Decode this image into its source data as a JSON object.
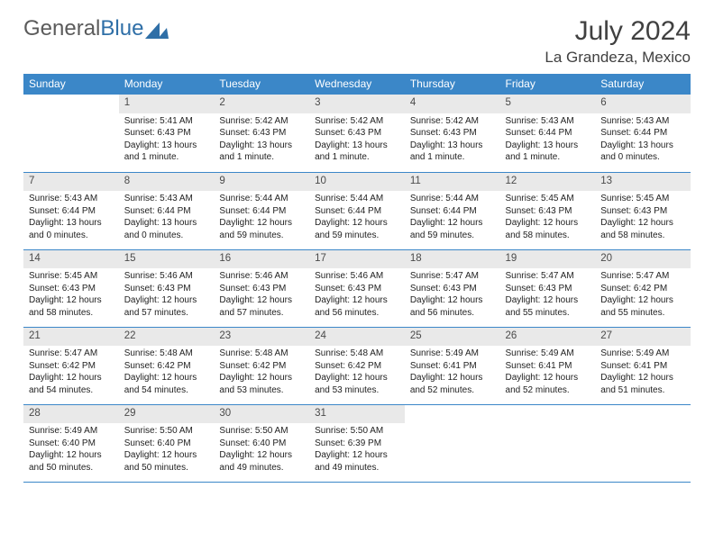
{
  "logo": {
    "text_gray": "General",
    "text_blue": "Blue"
  },
  "title": "July 2024",
  "location": "La Grandeza, Mexico",
  "colors": {
    "header_bg": "#3b87c8",
    "header_text": "#ffffff",
    "daynum_bg": "#e9e9e9",
    "row_border": "#3b87c8",
    "logo_gray": "#5b5b5b",
    "logo_blue": "#2f6fa7"
  },
  "weekdays": [
    "Sunday",
    "Monday",
    "Tuesday",
    "Wednesday",
    "Thursday",
    "Friday",
    "Saturday"
  ],
  "weeks": [
    [
      null,
      {
        "n": "1",
        "sr": "Sunrise: 5:41 AM",
        "ss": "Sunset: 6:43 PM",
        "d1": "Daylight: 13 hours",
        "d2": "and 1 minute."
      },
      {
        "n": "2",
        "sr": "Sunrise: 5:42 AM",
        "ss": "Sunset: 6:43 PM",
        "d1": "Daylight: 13 hours",
        "d2": "and 1 minute."
      },
      {
        "n": "3",
        "sr": "Sunrise: 5:42 AM",
        "ss": "Sunset: 6:43 PM",
        "d1": "Daylight: 13 hours",
        "d2": "and 1 minute."
      },
      {
        "n": "4",
        "sr": "Sunrise: 5:42 AM",
        "ss": "Sunset: 6:43 PM",
        "d1": "Daylight: 13 hours",
        "d2": "and 1 minute."
      },
      {
        "n": "5",
        "sr": "Sunrise: 5:43 AM",
        "ss": "Sunset: 6:44 PM",
        "d1": "Daylight: 13 hours",
        "d2": "and 1 minute."
      },
      {
        "n": "6",
        "sr": "Sunrise: 5:43 AM",
        "ss": "Sunset: 6:44 PM",
        "d1": "Daylight: 13 hours",
        "d2": "and 0 minutes."
      }
    ],
    [
      {
        "n": "7",
        "sr": "Sunrise: 5:43 AM",
        "ss": "Sunset: 6:44 PM",
        "d1": "Daylight: 13 hours",
        "d2": "and 0 minutes."
      },
      {
        "n": "8",
        "sr": "Sunrise: 5:43 AM",
        "ss": "Sunset: 6:44 PM",
        "d1": "Daylight: 13 hours",
        "d2": "and 0 minutes."
      },
      {
        "n": "9",
        "sr": "Sunrise: 5:44 AM",
        "ss": "Sunset: 6:44 PM",
        "d1": "Daylight: 12 hours",
        "d2": "and 59 minutes."
      },
      {
        "n": "10",
        "sr": "Sunrise: 5:44 AM",
        "ss": "Sunset: 6:44 PM",
        "d1": "Daylight: 12 hours",
        "d2": "and 59 minutes."
      },
      {
        "n": "11",
        "sr": "Sunrise: 5:44 AM",
        "ss": "Sunset: 6:44 PM",
        "d1": "Daylight: 12 hours",
        "d2": "and 59 minutes."
      },
      {
        "n": "12",
        "sr": "Sunrise: 5:45 AM",
        "ss": "Sunset: 6:43 PM",
        "d1": "Daylight: 12 hours",
        "d2": "and 58 minutes."
      },
      {
        "n": "13",
        "sr": "Sunrise: 5:45 AM",
        "ss": "Sunset: 6:43 PM",
        "d1": "Daylight: 12 hours",
        "d2": "and 58 minutes."
      }
    ],
    [
      {
        "n": "14",
        "sr": "Sunrise: 5:45 AM",
        "ss": "Sunset: 6:43 PM",
        "d1": "Daylight: 12 hours",
        "d2": "and 58 minutes."
      },
      {
        "n": "15",
        "sr": "Sunrise: 5:46 AM",
        "ss": "Sunset: 6:43 PM",
        "d1": "Daylight: 12 hours",
        "d2": "and 57 minutes."
      },
      {
        "n": "16",
        "sr": "Sunrise: 5:46 AM",
        "ss": "Sunset: 6:43 PM",
        "d1": "Daylight: 12 hours",
        "d2": "and 57 minutes."
      },
      {
        "n": "17",
        "sr": "Sunrise: 5:46 AM",
        "ss": "Sunset: 6:43 PM",
        "d1": "Daylight: 12 hours",
        "d2": "and 56 minutes."
      },
      {
        "n": "18",
        "sr": "Sunrise: 5:47 AM",
        "ss": "Sunset: 6:43 PM",
        "d1": "Daylight: 12 hours",
        "d2": "and 56 minutes."
      },
      {
        "n": "19",
        "sr": "Sunrise: 5:47 AM",
        "ss": "Sunset: 6:43 PM",
        "d1": "Daylight: 12 hours",
        "d2": "and 55 minutes."
      },
      {
        "n": "20",
        "sr": "Sunrise: 5:47 AM",
        "ss": "Sunset: 6:42 PM",
        "d1": "Daylight: 12 hours",
        "d2": "and 55 minutes."
      }
    ],
    [
      {
        "n": "21",
        "sr": "Sunrise: 5:47 AM",
        "ss": "Sunset: 6:42 PM",
        "d1": "Daylight: 12 hours",
        "d2": "and 54 minutes."
      },
      {
        "n": "22",
        "sr": "Sunrise: 5:48 AM",
        "ss": "Sunset: 6:42 PM",
        "d1": "Daylight: 12 hours",
        "d2": "and 54 minutes."
      },
      {
        "n": "23",
        "sr": "Sunrise: 5:48 AM",
        "ss": "Sunset: 6:42 PM",
        "d1": "Daylight: 12 hours",
        "d2": "and 53 minutes."
      },
      {
        "n": "24",
        "sr": "Sunrise: 5:48 AM",
        "ss": "Sunset: 6:42 PM",
        "d1": "Daylight: 12 hours",
        "d2": "and 53 minutes."
      },
      {
        "n": "25",
        "sr": "Sunrise: 5:49 AM",
        "ss": "Sunset: 6:41 PM",
        "d1": "Daylight: 12 hours",
        "d2": "and 52 minutes."
      },
      {
        "n": "26",
        "sr": "Sunrise: 5:49 AM",
        "ss": "Sunset: 6:41 PM",
        "d1": "Daylight: 12 hours",
        "d2": "and 52 minutes."
      },
      {
        "n": "27",
        "sr": "Sunrise: 5:49 AM",
        "ss": "Sunset: 6:41 PM",
        "d1": "Daylight: 12 hours",
        "d2": "and 51 minutes."
      }
    ],
    [
      {
        "n": "28",
        "sr": "Sunrise: 5:49 AM",
        "ss": "Sunset: 6:40 PM",
        "d1": "Daylight: 12 hours",
        "d2": "and 50 minutes."
      },
      {
        "n": "29",
        "sr": "Sunrise: 5:50 AM",
        "ss": "Sunset: 6:40 PM",
        "d1": "Daylight: 12 hours",
        "d2": "and 50 minutes."
      },
      {
        "n": "30",
        "sr": "Sunrise: 5:50 AM",
        "ss": "Sunset: 6:40 PM",
        "d1": "Daylight: 12 hours",
        "d2": "and 49 minutes."
      },
      {
        "n": "31",
        "sr": "Sunrise: 5:50 AM",
        "ss": "Sunset: 6:39 PM",
        "d1": "Daylight: 12 hours",
        "d2": "and 49 minutes."
      },
      null,
      null,
      null
    ]
  ]
}
